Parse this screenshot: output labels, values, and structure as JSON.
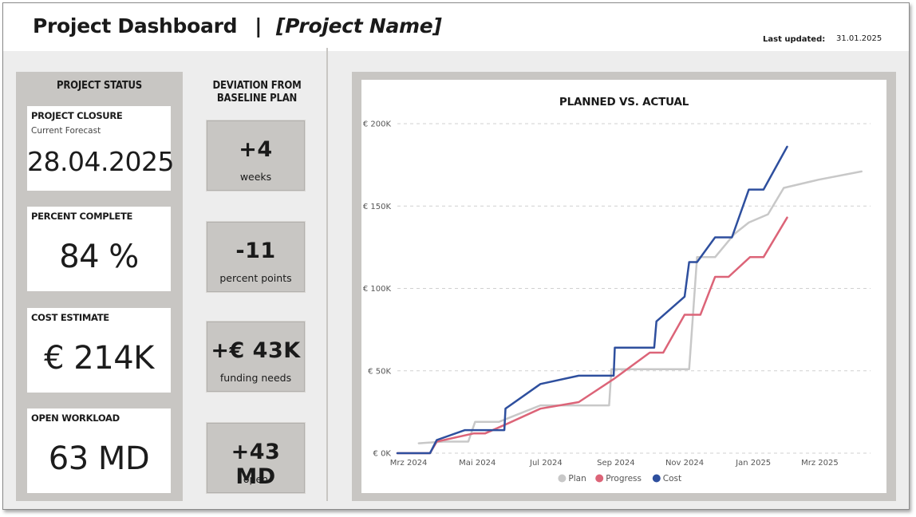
{
  "header": {
    "title": "Project Dashboard",
    "separator": "|",
    "project_name": "[Project Name]",
    "last_updated_label": "Last updated:",
    "last_updated_value": "31.01.2025"
  },
  "status": {
    "heading": "PROJECT STATUS",
    "closure": {
      "label": "PROJECT CLOSURE",
      "sub": "Current Forecast",
      "value": "28.04.2025"
    },
    "percent": {
      "label": "PERCENT COMPLETE",
      "value": "84 %"
    },
    "cost": {
      "label": "COST ESTIMATE",
      "value": "€ 214K"
    },
    "workload": {
      "label": "OPEN WORKLOAD",
      "value": "63 MD"
    }
  },
  "deviation": {
    "heading_line1": "DEVIATION FROM",
    "heading_line2": "BASELINE PLAN",
    "items": [
      {
        "value": "+4",
        "unit": "weeks"
      },
      {
        "value": "-11",
        "unit": "percent points"
      },
      {
        "value": "+€ 43K",
        "unit": "funding needs"
      },
      {
        "value": "+43 MD",
        "unit": "open"
      }
    ]
  },
  "colors": {
    "plan": "#c8c8c8",
    "progress": "#dc6478",
    "cost": "#2e4f9e",
    "panel": "#c8c6c3"
  },
  "chart_data": {
    "type": "line",
    "title": "PLANNED VS. ACTUAL",
    "ylim": [
      0,
      200000
    ],
    "yticks": [
      0,
      50000,
      100000,
      150000,
      200000
    ],
    "ytick_labels": [
      "€ 0K",
      "€ 50K",
      "€ 100K",
      "€ 150K",
      "€ 200K"
    ],
    "xlim": [
      "2024-02-20",
      "2025-04-15"
    ],
    "xticks": [
      "2024-03-01",
      "2024-05-01",
      "2024-07-01",
      "2024-09-01",
      "2024-11-01",
      "2025-01-01",
      "2025-03-01"
    ],
    "xtick_labels": [
      "Mrz 2024",
      "Mai 2024",
      "Jul 2024",
      "Sep 2024",
      "Nov 2024",
      "Jan 2025",
      "Mrz 2025"
    ],
    "grid": true,
    "legend": "bottom-center",
    "series": [
      {
        "name": "Plan",
        "color": "#c8c8c8",
        "points": [
          [
            "2024-03-10",
            6000
          ],
          [
            "2024-04-01",
            7000
          ],
          [
            "2024-04-23",
            7000
          ],
          [
            "2024-04-29",
            19000
          ],
          [
            "2024-05-20",
            19000
          ],
          [
            "2024-06-26",
            29000
          ],
          [
            "2024-07-20",
            29000
          ],
          [
            "2024-08-26",
            29000
          ],
          [
            "2024-08-28",
            51000
          ],
          [
            "2024-09-30",
            51000
          ],
          [
            "2024-11-05",
            51000
          ],
          [
            "2024-11-12",
            119000
          ],
          [
            "2024-11-28",
            119000
          ],
          [
            "2024-12-15",
            133000
          ],
          [
            "2024-12-28",
            140000
          ],
          [
            "2025-01-14",
            145000
          ],
          [
            "2025-01-28",
            161000
          ],
          [
            "2025-02-28",
            166000
          ],
          [
            "2025-04-07",
            171000
          ]
        ]
      },
      {
        "name": "Progress",
        "color": "#dc6478",
        "points": [
          [
            "2024-02-20",
            0
          ],
          [
            "2024-03-20",
            0
          ],
          [
            "2024-03-26",
            7000
          ],
          [
            "2024-04-28",
            12000
          ],
          [
            "2024-05-08",
            12000
          ],
          [
            "2024-05-28",
            18000
          ],
          [
            "2024-06-26",
            27000
          ],
          [
            "2024-07-30",
            31000
          ],
          [
            "2024-08-30",
            45000
          ],
          [
            "2024-10-01",
            61000
          ],
          [
            "2024-10-13",
            61000
          ],
          [
            "2024-11-01",
            84000
          ],
          [
            "2024-11-15",
            84000
          ],
          [
            "2024-11-28",
            107000
          ],
          [
            "2024-12-10",
            107000
          ],
          [
            "2024-12-29",
            119000
          ],
          [
            "2025-01-10",
            119000
          ],
          [
            "2025-01-31",
            143000
          ]
        ]
      },
      {
        "name": "Cost",
        "color": "#2e4f9e",
        "points": [
          [
            "2024-02-20",
            0
          ],
          [
            "2024-03-20",
            0
          ],
          [
            "2024-03-26",
            8000
          ],
          [
            "2024-04-20",
            14000
          ],
          [
            "2024-05-25",
            14000
          ],
          [
            "2024-05-26",
            27000
          ],
          [
            "2024-06-26",
            42000
          ],
          [
            "2024-07-30",
            47000
          ],
          [
            "2024-08-30",
            47000
          ],
          [
            "2024-08-31",
            64000
          ],
          [
            "2024-10-05",
            64000
          ],
          [
            "2024-10-07",
            80000
          ],
          [
            "2024-11-01",
            95000
          ],
          [
            "2024-11-05",
            116000
          ],
          [
            "2024-11-12",
            116000
          ],
          [
            "2024-11-28",
            131000
          ],
          [
            "2024-12-13",
            131000
          ],
          [
            "2024-12-28",
            160000
          ],
          [
            "2025-01-10",
            160000
          ],
          [
            "2025-01-31",
            186000
          ]
        ]
      }
    ]
  }
}
